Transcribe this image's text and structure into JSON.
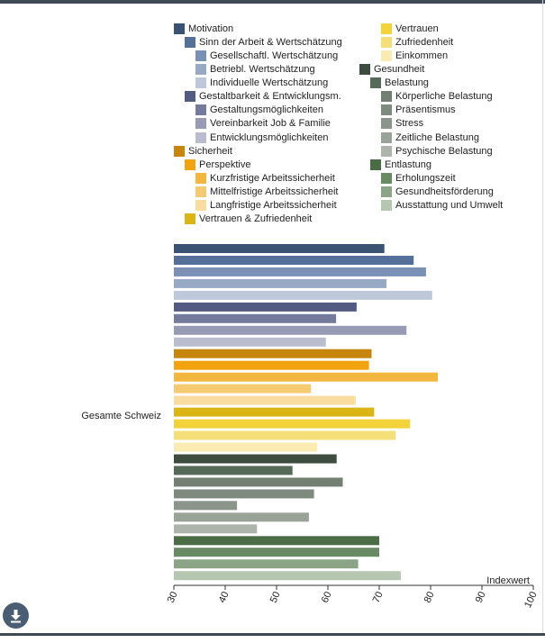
{
  "chart_data": {
    "type": "bar",
    "orientation": "horizontal",
    "category_label": "Gesamte Schweiz",
    "xlabel": "Indexwert",
    "xlim": [
      30,
      100
    ],
    "xticks": [
      "30",
      "40",
      "50",
      "60",
      "70",
      "80",
      "90",
      "100"
    ],
    "series": [
      {
        "name": "Motivation",
        "value": 71.0,
        "color": "#3b5372"
      },
      {
        "name": "Sinn der Arbeit & Wertschätzung",
        "value": 76.7,
        "color": "#546f99"
      },
      {
        "name": "Gesellschaftl. Wertschätzung",
        "value": 79.1,
        "color": "#7a90b5"
      },
      {
        "name": "Betriebl. Wertschätzung",
        "value": 71.4,
        "color": "#98a9c6"
      },
      {
        "name": "Individuelle Wertschätzung",
        "value": 80.3,
        "color": "#bdc8da"
      },
      {
        "name": "Gestaltbarkeit & Entwicklungsm.",
        "value": 65.6,
        "color": "#545b82"
      },
      {
        "name": "Gestaltungsmöglichkeiten",
        "value": 61.6,
        "color": "#757b9c"
      },
      {
        "name": "Vereinbarkeit Job & Familie",
        "value": 75.3,
        "color": "#979bb4"
      },
      {
        "name": "Entwicklungsmöglichkeiten",
        "value": 59.6,
        "color": "#babdcd"
      },
      {
        "name": "Sicherheit",
        "value": 68.5,
        "color": "#c6850d"
      },
      {
        "name": "Perspektive",
        "value": 68.0,
        "color": "#f1a410"
      },
      {
        "name": "Kurzfristige Arbeitssicherheit",
        "value": 81.4,
        "color": "#f3b740"
      },
      {
        "name": "Mittelfristige Arbeitssicherheit",
        "value": 56.7,
        "color": "#f6ca70"
      },
      {
        "name": "Langfristige Arbeitssicherheit",
        "value": 65.4,
        "color": "#f8dca0"
      },
      {
        "name": "Vertrauen & Zufriedenheit",
        "value": 69.0,
        "color": "#dbb416"
      },
      {
        "name": "Vertrauen",
        "value": 76.0,
        "color": "#f2d33a"
      },
      {
        "name": "Zufriedenheit",
        "value": 73.2,
        "color": "#f5df78"
      },
      {
        "name": "Einkommen",
        "value": 57.9,
        "color": "#f9ebb2"
      },
      {
        "name": "Gesundheit",
        "value": 61.7,
        "color": "#3e4b3f"
      },
      {
        "name": "Belastung",
        "value": 53.1,
        "color": "#566a59"
      },
      {
        "name": "Körperliche Belastung",
        "value": 62.9,
        "color": "#737f72"
      },
      {
        "name": "Präsentismus",
        "value": 57.3,
        "color": "#7f8a7e"
      },
      {
        "name": "Stress",
        "value": 42.3,
        "color": "#8b958a"
      },
      {
        "name": "Zeitliche Belastung",
        "value": 56.3,
        "color": "#9aa398"
      },
      {
        "name": "Psychische Belastung",
        "value": 46.2,
        "color": "#adb4ab"
      },
      {
        "name": "Entlastung",
        "value": 70.0,
        "color": "#4a6d45"
      },
      {
        "name": "Erholungszeit",
        "value": 70.0,
        "color": "#6a8a65"
      },
      {
        "name": "Gesundheitsförderung",
        "value": 65.9,
        "color": "#8aa485"
      },
      {
        "name": "Ausstattung und Umwelt",
        "value": 74.2,
        "color": "#b5c6b1"
      }
    ]
  }
}
